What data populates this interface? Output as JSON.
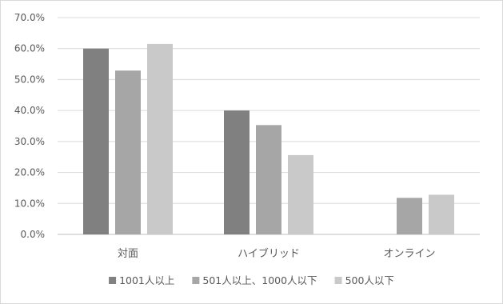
{
  "chart_data": {
    "type": "bar",
    "categories": [
      "対面",
      "ハイブリッド",
      "オンライン"
    ],
    "series": [
      {
        "name": "1001人以上",
        "color": "#808080",
        "values": [
          60.0,
          40.0,
          0.0
        ]
      },
      {
        "name": "501人以上、1000人以下",
        "color": "#a6a6a6",
        "values": [
          52.9,
          35.3,
          11.8
        ]
      },
      {
        "name": "500人以下",
        "color": "#c9c9c9",
        "values": [
          61.5,
          25.6,
          12.8
        ]
      }
    ],
    "ylim": [
      0,
      70
    ],
    "yticks": [
      "0.0%",
      "10.0%",
      "20.0%",
      "30.0%",
      "40.0%",
      "50.0%",
      "60.0%",
      "70.0%"
    ],
    "grid": true,
    "legend_position": "bottom"
  }
}
